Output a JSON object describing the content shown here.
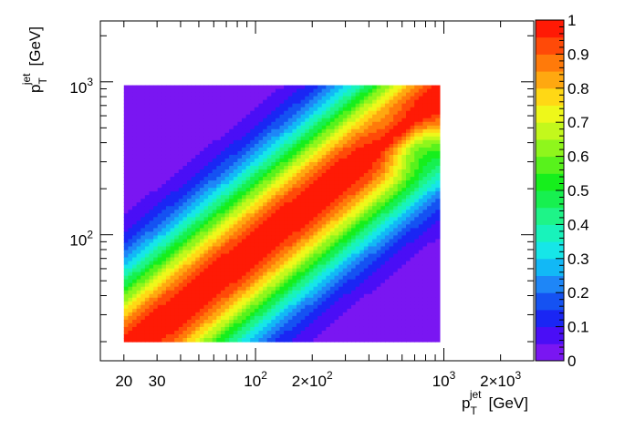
{
  "chart_data": {
    "type": "heatmap",
    "title": "",
    "x_axis": {
      "label": "p",
      "label_sub": "T",
      "label_sup": "jet",
      "label_unit": "[GeV]",
      "scale": "log",
      "range": [
        15,
        3000
      ],
      "ticks": [
        {
          "value": 20,
          "text": "20"
        },
        {
          "value": 30,
          "text": "30"
        },
        {
          "value": 100,
          "text": "10",
          "sup": "2"
        },
        {
          "value": 200,
          "text": "2×10",
          "sup": "2"
        },
        {
          "value": 1000,
          "text": "10",
          "sup": "3"
        },
        {
          "value": 2000,
          "text": "2×10",
          "sup": "3"
        }
      ]
    },
    "y_axis": {
      "label": "p",
      "label_sub": "T",
      "label_sup": "jet",
      "label_unit": "[GeV]",
      "scale": "log",
      "range": [
        15,
        2500
      ],
      "ticks": [
        {
          "value": 100,
          "text": "10",
          "sup": "2"
        },
        {
          "value": 1000,
          "text": "10",
          "sup": "3"
        }
      ]
    },
    "data_range": {
      "x": [
        20,
        950
      ],
      "y": [
        20,
        950
      ]
    },
    "z_axis": {
      "range": [
        0,
        1
      ],
      "levels": 20,
      "ticks": [
        {
          "value": 0,
          "text": "0"
        },
        {
          "value": 0.1,
          "text": "0.1"
        },
        {
          "value": 0.2,
          "text": "0.2"
        },
        {
          "value": 0.3,
          "text": "0.3"
        },
        {
          "value": 0.4,
          "text": "0.4"
        },
        {
          "value": 0.5,
          "text": "0.5"
        },
        {
          "value": 0.6,
          "text": "0.6"
        },
        {
          "value": 0.7,
          "text": "0.7"
        },
        {
          "value": 0.8,
          "text": "0.8"
        },
        {
          "value": 0.9,
          "text": "0.9"
        },
        {
          "value": 1,
          "text": "1"
        }
      ]
    },
    "palette": [
      "#7a16f2",
      "#4a0ef6",
      "#1a26f4",
      "#1552f2",
      "#1e86f7",
      "#12b8f6",
      "#16e6e8",
      "#18f3bb",
      "#1ef488",
      "#17f050",
      "#16ef1c",
      "#58f21c",
      "#8ff61c",
      "#c3f81c",
      "#eef81a",
      "#ffd815",
      "#ffa810",
      "#ff7a0a",
      "#ff4a08",
      "#ff1a05"
    ],
    "description_model": {
      "diagonal_shift": 0.08,
      "width_sigma": 0.37,
      "anomaly": {
        "x": 650,
        "y": 400,
        "strength": 0.3,
        "sigma": 0.12
      }
    }
  }
}
